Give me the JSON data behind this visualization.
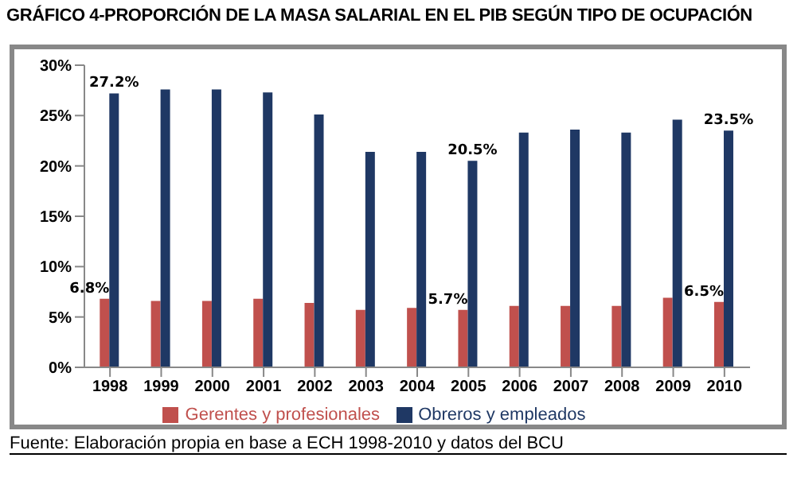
{
  "chart_data": {
    "type": "bar",
    "title": "GRÁFICO 4-PROPORCIÓN DE LA MASA SALARIAL EN EL PIB SEGÚN TIPO DE OCUPACIÓN",
    "categories": [
      "1998",
      "1999",
      "2000",
      "2001",
      "2002",
      "2003",
      "2004",
      "2005",
      "2006",
      "2007",
      "2008",
      "2009",
      "2010"
    ],
    "series": [
      {
        "name": "Gerentes y profesionales",
        "color": "#c0504d",
        "values": [
          6.8,
          6.6,
          6.6,
          6.8,
          6.4,
          5.7,
          5.9,
          5.7,
          6.1,
          6.1,
          6.1,
          6.9,
          6.5
        ],
        "value_labels": [
          "6.8%",
          null,
          null,
          null,
          null,
          null,
          null,
          "5.7%",
          null,
          null,
          null,
          null,
          "6.5%"
        ]
      },
      {
        "name": "Obreros y empleados",
        "color": "#1f3864",
        "values": [
          27.2,
          27.6,
          27.6,
          27.3,
          25.1,
          21.4,
          21.4,
          20.5,
          23.3,
          23.6,
          23.3,
          24.6,
          23.5
        ],
        "value_labels": [
          "27.2%",
          null,
          null,
          null,
          null,
          null,
          null,
          "20.5%",
          null,
          null,
          null,
          null,
          "23.5%"
        ]
      }
    ],
    "ylim": [
      0,
      30
    ],
    "yticks": [
      {
        "value": 0,
        "label": "0%"
      },
      {
        "value": 5,
        "label": "5%"
      },
      {
        "value": 10,
        "label": "10%"
      },
      {
        "value": 15,
        "label": "15%"
      },
      {
        "value": 20,
        "label": "20%"
      },
      {
        "value": 25,
        "label": "25%"
      },
      {
        "value": 30,
        "label": "30%"
      }
    ],
    "grid": false,
    "legend": "bottom",
    "annotations": [
      "Fuente: Elaboración propia en base a ECH 1998-2010 y datos del BCU"
    ]
  }
}
